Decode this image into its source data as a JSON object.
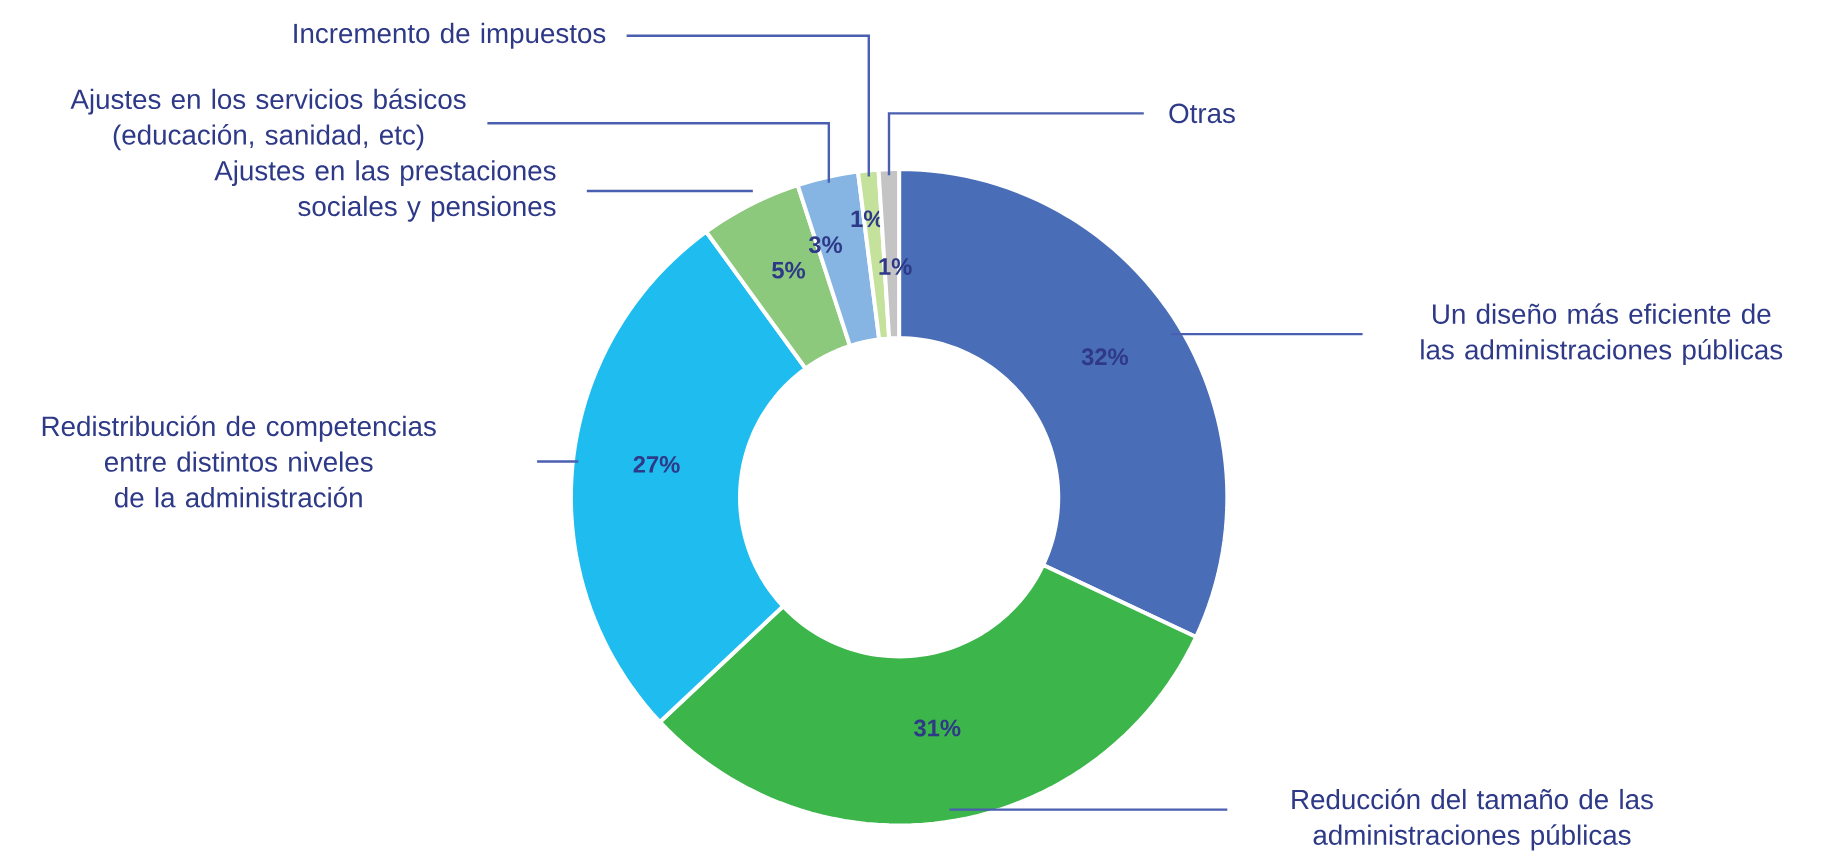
{
  "chart_data": {
    "type": "donut",
    "categories": [
      "Un diseño más eficiente de las administraciones públicas",
      "Reducción del tamaño de las administraciones públicas",
      "Redistribución de competencias entre distintos niveles de la administración",
      "Ajustes en las prestaciones sociales y pensiones",
      "Ajustes en los servicios básicos (educación, sanidad, etc)",
      "Incremento de impuestos",
      "Otras"
    ],
    "values": [
      32,
      31,
      27,
      5,
      3,
      1,
      1
    ],
    "value_labels": [
      "32%",
      "31%",
      "27%",
      "5%",
      "3%",
      "1%",
      "1%"
    ],
    "colors": [
      "#4a6db8",
      "#3cb54a",
      "#1fbcef",
      "#8cc97c",
      "#86b5e3",
      "#c5e29c",
      "#c4c4c4"
    ]
  }
}
